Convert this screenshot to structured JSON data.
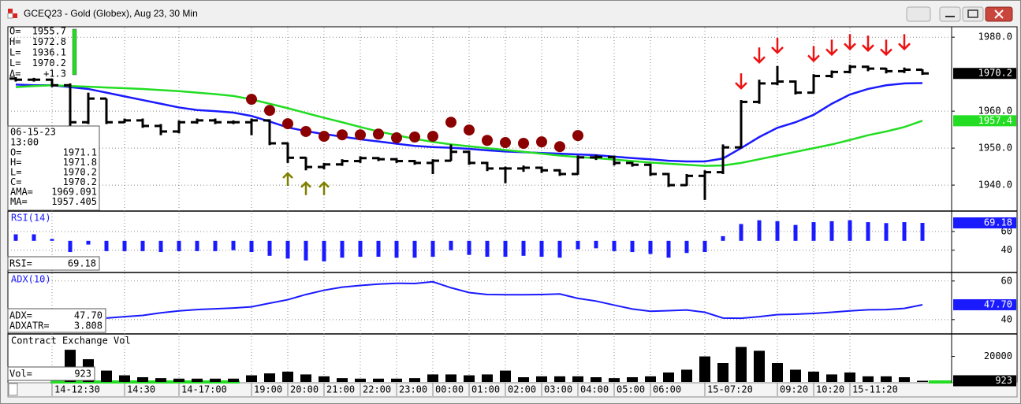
{
  "window": {
    "title": "GCEQ23 - Gold (Globex), Aug 23, 30 Min"
  },
  "chart_data": [
    {
      "type": "ohlc",
      "categories": [
        null,
        null,
        "14-12:30",
        null,
        null,
        null,
        "14:30",
        null,
        null,
        "14-17:00",
        null,
        null,
        null,
        "19:00",
        null,
        "20:00",
        null,
        "21:00",
        null,
        "22:00",
        null,
        "23:00",
        null,
        "00:00",
        null,
        "01:00",
        null,
        "02:00",
        null,
        "03:00",
        null,
        "04:00",
        null,
        "05:00",
        null,
        "06:00",
        null,
        null,
        "15-07:20",
        null,
        null,
        null,
        "09:20",
        null,
        "10:20",
        null,
        "15-11:20",
        null,
        null,
        null,
        null
      ],
      "open": [
        1968.8,
        1968.5,
        1968.5,
        1967,
        1957,
        1963.4,
        1957,
        1957.5,
        1956,
        1954.5,
        1957,
        1957.5,
        1957,
        1957,
        1957.5,
        1951.3,
        1947.4,
        1944.9,
        1945.6,
        1946.5,
        1947.3,
        1947,
        1946.5,
        1946,
        1946.6,
        1949,
        1946,
        1944.5,
        1944.5,
        1944.7,
        1944,
        1943,
        1947.5,
        1947.6,
        1946,
        1945.5,
        1943,
        1940,
        1942.5,
        1943.5,
        1950.2,
        1962.5,
        1967.5,
        1968,
        1965,
        1969.5,
        1970.6,
        1972,
        1971.5,
        1970.8,
        1971.2
      ],
      "high": [
        1969.2,
        1969,
        1968.8,
        1967.5,
        1965,
        1963.4,
        1958,
        1958,
        1956.5,
        1957.5,
        1958,
        1958,
        1957.5,
        1958,
        1957.8,
        1951.5,
        1947.6,
        1946,
        1947,
        1947.8,
        1947.6,
        1947.3,
        1946.8,
        1947,
        1951,
        1949.3,
        1946.3,
        1945,
        1945.3,
        1945,
        1944.3,
        1948,
        1948.2,
        1948,
        1946.3,
        1945.8,
        1943.3,
        1943,
        1944,
        1951,
        1963,
        1968.5,
        1972.2,
        1968.3,
        1970,
        1971,
        1972.5,
        1972.3,
        1971.7,
        1971.8,
        1971.3
      ],
      "low": [
        1968,
        1968,
        1966.5,
        1956,
        1956.5,
        1956.5,
        1956.8,
        1955.5,
        1953.5,
        1954,
        1956.6,
        1956.5,
        1956.5,
        1953.5,
        1950.8,
        1946,
        1944,
        1944.3,
        1945.2,
        1946,
        1946.5,
        1946,
        1945.5,
        1943,
        1946.5,
        1945.5,
        1943.8,
        1940.5,
        1943.6,
        1943.3,
        1942.5,
        1942.8,
        1946.8,
        1945.3,
        1945,
        1942.5,
        1939.5,
        1939.8,
        1936,
        1943,
        1950,
        1962,
        1967,
        1964.5,
        1964.8,
        1969,
        1970.2,
        1970.8,
        1970.2,
        1970.3,
        1969.8
      ],
      "close": [
        1968.5,
        1968.5,
        1967,
        1957,
        1963.4,
        1957,
        1957.5,
        1956,
        1954.5,
        1957,
        1957.5,
        1957,
        1957,
        1957.5,
        1951.3,
        1947.4,
        1944.9,
        1945.6,
        1946.5,
        1947.3,
        1947,
        1946.5,
        1946,
        1946.6,
        1949,
        1946,
        1944.5,
        1944.5,
        1944.7,
        1944,
        1943,
        1947.5,
        1947.6,
        1946,
        1945.5,
        1943,
        1940,
        1942.5,
        1943.5,
        1950.2,
        1962.5,
        1967.5,
        1968,
        1965,
        1969.5,
        1970.6,
        1972,
        1971.5,
        1970.8,
        1971.2,
        1970.2
      ],
      "color": "#000000",
      "series": [
        {
          "color": "#1a1aff",
          "values": [
            1967.2,
            1967,
            1967,
            1966.5,
            1966,
            1965,
            1964,
            1963,
            1962,
            1961,
            1960.3,
            1960,
            1959.6,
            1958.7,
            1957.2,
            1955.6,
            1954.6,
            1953.8,
            1953.1,
            1952.4,
            1951.8,
            1951.2,
            1950.6,
            1950.3,
            1950.1,
            1949.8,
            1949.4,
            1949.1,
            1948.9,
            1948.7,
            1948.5,
            1948.3,
            1948.1,
            1947.7,
            1947.3,
            1947,
            1946.6,
            1946.4,
            1946.4,
            1947.2,
            1950,
            1953,
            1955.5,
            1957,
            1959,
            1962,
            1964.5,
            1966,
            1967,
            1967.5,
            1967.6
          ]
        },
        {
          "color": "#22dd22",
          "values": [
            1966.5,
            1966.8,
            1967,
            1966.8,
            1966.6,
            1966.4,
            1966.2,
            1966,
            1965.7,
            1965.4,
            1965,
            1964.6,
            1964.1,
            1963.2,
            1962,
            1960.8,
            1959.5,
            1958.2,
            1957,
            1955.7,
            1954.5,
            1953.5,
            1952.5,
            1951.7,
            1951,
            1950.5,
            1950,
            1949.5,
            1949,
            1948.5,
            1948,
            1947.6,
            1947.3,
            1946.9,
            1946.5,
            1946.1,
            1945.8,
            1945.5,
            1945.2,
            1945.3,
            1946,
            1947,
            1948,
            1949,
            1950,
            1951,
            1952.2,
            1953.5,
            1954.5,
            1955.7,
            1957.4
          ]
        }
      ],
      "dots": {
        "color": "#8b0000",
        "values": [
          null,
          null,
          null,
          null,
          null,
          null,
          null,
          null,
          null,
          null,
          null,
          null,
          null,
          1963.2,
          1960.2,
          1956.6,
          1954.5,
          1953.2,
          1953.6,
          1953.6,
          1953.8,
          1952.8,
          1953,
          1953.2,
          1957,
          1954.9,
          1952.1,
          1951.5,
          1951.3,
          1951.7,
          1950.4,
          1953.4,
          null,
          null,
          null,
          null,
          null,
          null,
          null,
          null,
          null,
          null,
          null,
          null,
          null,
          null,
          null,
          null,
          null,
          null,
          null
        ]
      },
      "down_arrows": {
        "color": "#ee1111",
        "values": [
          null,
          null,
          null,
          null,
          null,
          null,
          null,
          null,
          null,
          null,
          null,
          null,
          null,
          null,
          null,
          null,
          null,
          null,
          null,
          null,
          null,
          null,
          null,
          null,
          null,
          null,
          null,
          null,
          null,
          null,
          null,
          null,
          null,
          null,
          null,
          null,
          null,
          null,
          null,
          null,
          1968.1,
          1975.1,
          1977.7,
          null,
          1975.5,
          1977.2,
          1978.7,
          1978.3,
          1977.2,
          1978.7,
          null
        ]
      },
      "up_arrows": {
        "color": "#808000",
        "values": [
          null,
          null,
          null,
          null,
          null,
          null,
          null,
          null,
          null,
          null,
          null,
          null,
          null,
          null,
          null,
          1941.5,
          1939,
          1939,
          null,
          null,
          null,
          null,
          null,
          null,
          null,
          null,
          null,
          null,
          null,
          null,
          null,
          null,
          null,
          null,
          null,
          null,
          null,
          null,
          null,
          null,
          null,
          null,
          null,
          null,
          null,
          null,
          null,
          null,
          null,
          null,
          null
        ]
      },
      "ylim": [
        1933.2,
        1982.6
      ],
      "yticks": [
        {
          "value": 1940,
          "label": "1940.0"
        },
        {
          "value": 1950,
          "label": "1950.0"
        },
        {
          "value": 1960,
          "label": "1960.0"
        },
        {
          "value": 1980,
          "label": "1980.0"
        }
      ],
      "grid": true,
      "readout": [
        {
          "key": "O=",
          "value": 1955.7
        },
        {
          "key": "H=",
          "value": 1972.8
        },
        {
          "key": "L=",
          "value": 1936.1
        },
        {
          "key": "L=",
          "value": 1970.2
        },
        {
          "key": "Δ=",
          "value": "+1.3"
        }
      ],
      "info_box": {
        "date": "06-15-23",
        "time": "13:00",
        "rows": [
          {
            "key": "O=",
            "value": 1971.1
          },
          {
            "key": "H=",
            "value": 1971.8
          },
          {
            "key": "L=",
            "value": 1970.2
          },
          {
            "key": "C=",
            "value": 1970.2
          },
          {
            "key": "AMA=",
            "value": 1969.091
          },
          {
            "key": "MA=",
            "value": 1957.405
          }
        ]
      }
    },
    {
      "type": "bar",
      "title": "RSI(14)",
      "readout_key": "RSI=",
      "color": "#1a1aff",
      "baseline": 50,
      "values": [
        57,
        57,
        52,
        38,
        46,
        39,
        39,
        39,
        38,
        39,
        39,
        39,
        40,
        38,
        34,
        31,
        29,
        28,
        32,
        33,
        33,
        32,
        32,
        33,
        40,
        35,
        33,
        33,
        34,
        33,
        32,
        41,
        42,
        39,
        38,
        36,
        32,
        37,
        38,
        55,
        68,
        72,
        71,
        67,
        70,
        71,
        72,
        70,
        69,
        70,
        69.18
      ],
      "ylim": [
        17,
        81
      ],
      "yticks": [
        40,
        60
      ],
      "grid": true
    },
    {
      "type": "line",
      "title": "ADX(10)",
      "readout_key": "ADX=",
      "color": "#1a1aff",
      "values": [
        null,
        null,
        null,
        null,
        null,
        40.8,
        41.5,
        42.2,
        43.5,
        44.5,
        45.2,
        45.6,
        46,
        46.6,
        48.5,
        50.3,
        53,
        55.2,
        56.8,
        57.7,
        58.4,
        58.8,
        58.7,
        59.6,
        56.5,
        54,
        53,
        52.9,
        52.9,
        53,
        53.3,
        51,
        49.6,
        47.5,
        45.5,
        44.3,
        44.6,
        45,
        43.8,
        40.8,
        40.7,
        41.5,
        42.6,
        42.8,
        43.2,
        43.8,
        44.5,
        45.1,
        45.2,
        45.8,
        47.7
      ],
      "value_labels": [
        null,
        null,
        null,
        null,
        null,
        null,
        null,
        null,
        null,
        null,
        null,
        null,
        null,
        null,
        null,
        null,
        null,
        null,
        null,
        null,
        null,
        null,
        null,
        null,
        null,
        null,
        null,
        null,
        null,
        null,
        null,
        null,
        null,
        null,
        null,
        null,
        null,
        null,
        null,
        null,
        null,
        null,
        null,
        null,
        null,
        null,
        null,
        null,
        null,
        null,
        "47.70"
      ],
      "atr_key": "ADXATR=",
      "atr": 3.808,
      "ylim": [
        33,
        64
      ],
      "yticks": [
        40,
        60
      ],
      "grid": true
    },
    {
      "type": "bar",
      "title": "Contract Exchange Vol",
      "readout_key": "Vol=",
      "color": "#000000",
      "baseline": 0,
      "values": [
        null,
        null,
        null,
        25200,
        17800,
        8900,
        5200,
        3700,
        3000,
        2600,
        2600,
        2600,
        2600,
        5200,
        6700,
        8100,
        5900,
        4400,
        3000,
        2600,
        2600,
        2600,
        3000,
        5900,
        5900,
        5200,
        5900,
        8900,
        3700,
        4400,
        4400,
        4400,
        3700,
        3000,
        3700,
        4400,
        7400,
        9600,
        20000,
        14800,
        27400,
        24400,
        14800,
        9600,
        8100,
        5900,
        7400,
        4400,
        4400,
        3700,
        923
      ],
      "ylim": [
        0,
        37000
      ],
      "yticks": [
        20000
      ],
      "grid": false
    }
  ]
}
